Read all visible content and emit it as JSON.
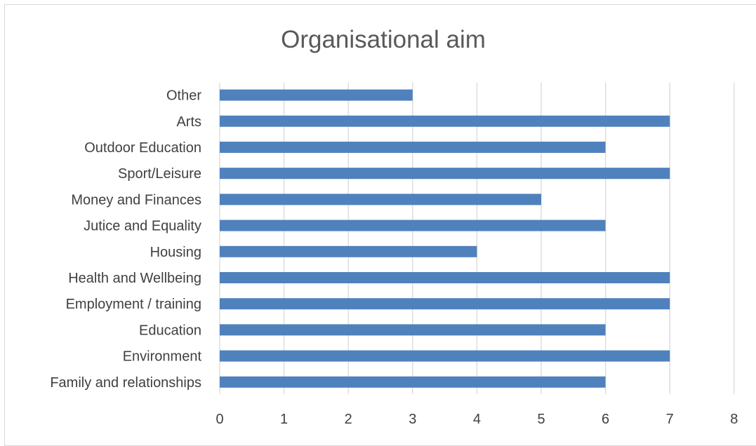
{
  "chart_data": {
    "type": "bar",
    "orientation": "horizontal",
    "title": "Organisational aim",
    "xlabel": "",
    "ylabel": "",
    "categories": [
      "Other",
      "Arts",
      "Outdoor Education",
      "Sport/Leisure",
      "Money and Finances",
      "Jutice and Equality",
      "Housing",
      "Health and Wellbeing",
      "Employment / training",
      "Education",
      "Environment",
      "Family and relationships"
    ],
    "values": [
      3,
      7,
      6,
      7,
      5,
      6,
      4,
      7,
      7,
      6,
      7,
      6
    ],
    "xlim": [
      0,
      8
    ],
    "xticks": [
      0,
      1,
      2,
      3,
      4,
      5,
      6,
      7,
      8
    ],
    "grid": "vertical",
    "legend": "none",
    "bar_color": "#4f81bd"
  }
}
